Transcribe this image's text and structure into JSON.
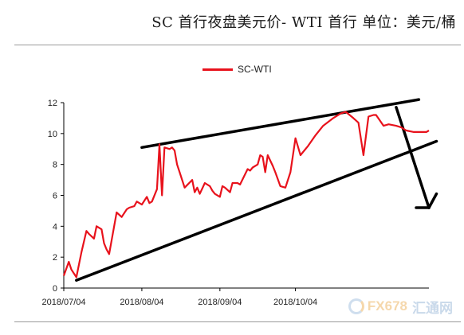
{
  "header": {
    "title": "SC 首行夜盘美元价- WTI 首行  单位：美元/桶"
  },
  "watermark": {
    "brand": "FX678",
    "site": "汇通网"
  },
  "colors": {
    "series": "#e8121c",
    "axis": "#000000",
    "annotation": "#000000"
  },
  "chart_data": {
    "type": "line",
    "title": "",
    "xlabel": "",
    "ylabel": "",
    "ylim": [
      0,
      12
    ],
    "yticks": [
      0,
      2,
      4,
      6,
      8,
      10,
      12
    ],
    "xlim": [
      "2018-07-04",
      "2018-11-26"
    ],
    "xticks": [
      "2018/07/04",
      "2018/08/04",
      "2018/09/04",
      "2018/10/04"
    ],
    "grid": false,
    "legend_position": "top-center",
    "series": [
      {
        "name": "SC-WTI",
        "x": [
          "2018-07-04",
          "2018-07-06",
          "2018-07-07",
          "2018-07-09",
          "2018-07-11",
          "2018-07-13",
          "2018-07-14",
          "2018-07-16",
          "2018-07-17",
          "2018-07-19",
          "2018-07-20",
          "2018-07-21",
          "2018-07-22",
          "2018-07-25",
          "2018-07-27",
          "2018-07-29",
          "2018-07-30",
          "2018-08-01",
          "2018-08-02",
          "2018-08-03",
          "2018-08-04",
          "2018-08-06",
          "2018-08-07",
          "2018-08-08",
          "2018-08-10",
          "2018-08-11",
          "2018-08-12",
          "2018-08-13",
          "2018-08-15",
          "2018-08-16",
          "2018-08-17",
          "2018-08-18",
          "2018-08-19",
          "2018-08-21",
          "2018-08-24",
          "2018-08-25",
          "2018-08-26",
          "2018-08-27",
          "2018-08-29",
          "2018-08-31",
          "2018-09-01",
          "2018-09-02",
          "2018-09-04",
          "2018-09-05",
          "2018-09-06",
          "2018-09-08",
          "2018-09-09",
          "2018-09-11",
          "2018-09-12",
          "2018-09-15",
          "2018-09-16",
          "2018-09-17",
          "2018-09-19",
          "2018-09-20",
          "2018-09-21",
          "2018-09-22",
          "2018-09-23",
          "2018-09-25",
          "2018-09-26",
          "2018-09-28",
          "2018-09-30",
          "2018-10-02",
          "2018-10-04",
          "2018-10-06",
          "2018-10-09",
          "2018-10-12",
          "2018-10-15",
          "2018-10-19",
          "2018-10-22",
          "2018-10-24",
          "2018-10-27",
          "2018-10-29",
          "2018-10-31",
          "2018-11-02",
          "2018-11-04",
          "2018-11-05",
          "2018-11-08",
          "2018-11-10",
          "2018-11-13",
          "2018-11-15",
          "2018-11-17",
          "2018-11-20",
          "2018-11-22",
          "2018-11-25",
          "2018-11-26"
        ],
        "values": [
          0.8,
          1.7,
          1.2,
          0.7,
          2.3,
          3.7,
          3.5,
          3.2,
          4.0,
          3.8,
          2.9,
          2.5,
          2.2,
          4.9,
          4.6,
          5.1,
          5.2,
          5.3,
          5.6,
          5.5,
          5.4,
          5.9,
          5.5,
          5.6,
          6.4,
          9.3,
          6.0,
          9.1,
          9.0,
          9.1,
          8.9,
          8.0,
          7.5,
          6.5,
          7.0,
          6.2,
          6.5,
          6.1,
          6.8,
          6.6,
          6.3,
          6.1,
          5.9,
          6.6,
          6.5,
          6.2,
          6.8,
          6.8,
          6.7,
          7.7,
          7.6,
          7.8,
          8.0,
          8.6,
          8.5,
          7.5,
          8.6,
          7.9,
          7.5,
          6.6,
          6.5,
          7.5,
          9.7,
          8.6,
          9.2,
          9.9,
          10.5,
          11.0,
          11.3,
          11.4,
          11.0,
          10.7,
          8.6,
          11.1,
          11.2,
          11.2,
          10.5,
          10.6,
          10.5,
          10.4,
          10.2,
          10.1,
          10.1,
          10.1,
          10.2
        ]
      }
    ],
    "annotations": [
      {
        "type": "trendline",
        "from": [
          "2018-08-04",
          9.1
        ],
        "to": [
          "2018-11-22",
          12.2
        ]
      },
      {
        "type": "trendline",
        "from": [
          "2018-07-09",
          0.5
        ],
        "to": [
          "2018-11-29",
          9.5
        ]
      },
      {
        "type": "arrow",
        "from": [
          "2018-11-13",
          11.7
        ],
        "to": [
          "2018-11-26",
          5.2
        ]
      },
      {
        "type": "arrow-head-tail",
        "from": [
          "2018-11-26",
          5.2
        ],
        "to": [
          "2018-11-29",
          6.1
        ]
      }
    ]
  }
}
